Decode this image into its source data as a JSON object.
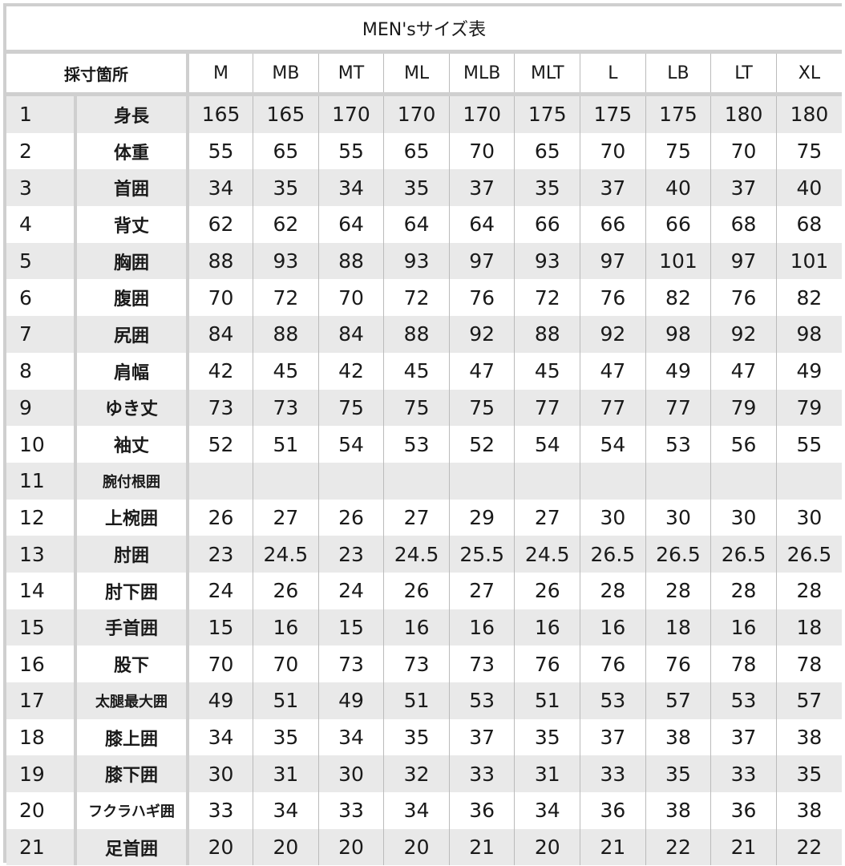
{
  "title": "MEN'sサイズ表",
  "header": {
    "measure_label": "採寸箇所",
    "sizes": [
      "M",
      "MB",
      "MT",
      "ML",
      "MLB",
      "MLT",
      "L",
      "LB",
      "LT",
      "XL"
    ]
  },
  "rows": [
    {
      "no": "1",
      "name": "身長",
      "values": [
        "165",
        "165",
        "170",
        "170",
        "170",
        "175",
        "175",
        "175",
        "180",
        "180"
      ]
    },
    {
      "no": "2",
      "name": "体重",
      "values": [
        "55",
        "65",
        "55",
        "65",
        "70",
        "65",
        "70",
        "75",
        "70",
        "75"
      ]
    },
    {
      "no": "3",
      "name": "首囲",
      "values": [
        "34",
        "35",
        "34",
        "35",
        "37",
        "35",
        "37",
        "40",
        "37",
        "40"
      ]
    },
    {
      "no": "4",
      "name": "背丈",
      "values": [
        "62",
        "62",
        "64",
        "64",
        "64",
        "66",
        "66",
        "66",
        "68",
        "68"
      ]
    },
    {
      "no": "5",
      "name": "胸囲",
      "values": [
        "88",
        "93",
        "88",
        "93",
        "97",
        "93",
        "97",
        "101",
        "97",
        "101"
      ]
    },
    {
      "no": "6",
      "name": "腹囲",
      "values": [
        "70",
        "72",
        "70",
        "72",
        "76",
        "72",
        "76",
        "82",
        "76",
        "82"
      ]
    },
    {
      "no": "7",
      "name": "尻囲",
      "values": [
        "84",
        "88",
        "84",
        "88",
        "92",
        "88",
        "92",
        "98",
        "92",
        "98"
      ]
    },
    {
      "no": "8",
      "name": "肩幅",
      "values": [
        "42",
        "45",
        "42",
        "45",
        "47",
        "45",
        "47",
        "49",
        "47",
        "49"
      ]
    },
    {
      "no": "9",
      "name": "ゆき丈",
      "values": [
        "73",
        "73",
        "75",
        "75",
        "75",
        "77",
        "77",
        "77",
        "79",
        "79"
      ]
    },
    {
      "no": "10",
      "name": "袖丈",
      "values": [
        "52",
        "51",
        "54",
        "53",
        "52",
        "54",
        "54",
        "53",
        "56",
        "55"
      ]
    },
    {
      "no": "11",
      "name": "腕付根囲",
      "values": [
        "",
        "",
        "",
        "",
        "",
        "",
        "",
        "",
        "",
        ""
      ]
    },
    {
      "no": "12",
      "name": "上椀囲",
      "values": [
        "26",
        "27",
        "26",
        "27",
        "29",
        "27",
        "30",
        "30",
        "30",
        "30"
      ]
    },
    {
      "no": "13",
      "name": "肘囲",
      "values": [
        "23",
        "24.5",
        "23",
        "24.5",
        "25.5",
        "24.5",
        "26.5",
        "26.5",
        "26.5",
        "26.5"
      ]
    },
    {
      "no": "14",
      "name": "肘下囲",
      "values": [
        "24",
        "26",
        "24",
        "26",
        "27",
        "26",
        "28",
        "28",
        "28",
        "28"
      ]
    },
    {
      "no": "15",
      "name": "手首囲",
      "values": [
        "15",
        "16",
        "15",
        "16",
        "16",
        "16",
        "16",
        "18",
        "16",
        "18"
      ]
    },
    {
      "no": "16",
      "name": "股下",
      "values": [
        "70",
        "70",
        "73",
        "73",
        "73",
        "76",
        "76",
        "76",
        "78",
        "78"
      ]
    },
    {
      "no": "17",
      "name": "太腿最大囲",
      "values": [
        "49",
        "51",
        "49",
        "51",
        "53",
        "51",
        "53",
        "57",
        "53",
        "57"
      ]
    },
    {
      "no": "18",
      "name": "膝上囲",
      "values": [
        "34",
        "35",
        "34",
        "35",
        "37",
        "35",
        "37",
        "38",
        "37",
        "38"
      ]
    },
    {
      "no": "19",
      "name": "膝下囲",
      "values": [
        "30",
        "31",
        "30",
        "32",
        "33",
        "31",
        "33",
        "35",
        "33",
        "35"
      ]
    },
    {
      "no": "20",
      "name": "フクラハギ囲",
      "values": [
        "33",
        "34",
        "33",
        "34",
        "36",
        "34",
        "36",
        "38",
        "36",
        "38"
      ]
    },
    {
      "no": "21",
      "name": "足首囲",
      "values": [
        "20",
        "20",
        "20",
        "20",
        "21",
        "20",
        "21",
        "22",
        "21",
        "22"
      ]
    }
  ]
}
